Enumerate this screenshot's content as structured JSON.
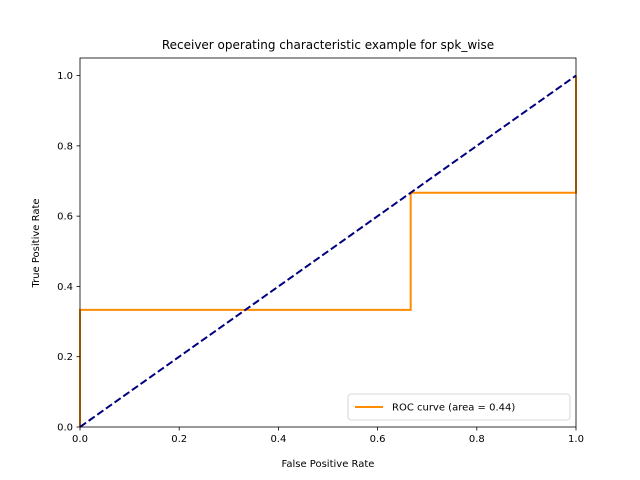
{
  "chart_data": {
    "type": "line",
    "title": "Receiver operating characteristic example for spk_wise",
    "xlabel": "False Positive Rate",
    "ylabel": "True Positive Rate",
    "xlim": [
      0.0,
      1.0
    ],
    "ylim": [
      0.0,
      1.05
    ],
    "x_ticks": [
      "0.0",
      "0.2",
      "0.4",
      "0.6",
      "0.8",
      "1.0"
    ],
    "y_ticks": [
      "0.0",
      "0.2",
      "0.4",
      "0.6",
      "0.8",
      "1.0"
    ],
    "grid": false,
    "legend_position": "lower-right",
    "series": [
      {
        "name": "ROC curve (area = 0.44)",
        "color": "#ff8c00",
        "style": "solid",
        "x": [
          0.0,
          0.0,
          0.6667,
          0.6667,
          1.0,
          1.0
        ],
        "y": [
          0.0,
          0.3333,
          0.3333,
          0.6667,
          0.6667,
          1.0
        ]
      },
      {
        "color": "#000080",
        "style": "dashed",
        "x": [
          0.0,
          1.0
        ],
        "y": [
          0.0,
          1.0
        ]
      }
    ]
  }
}
